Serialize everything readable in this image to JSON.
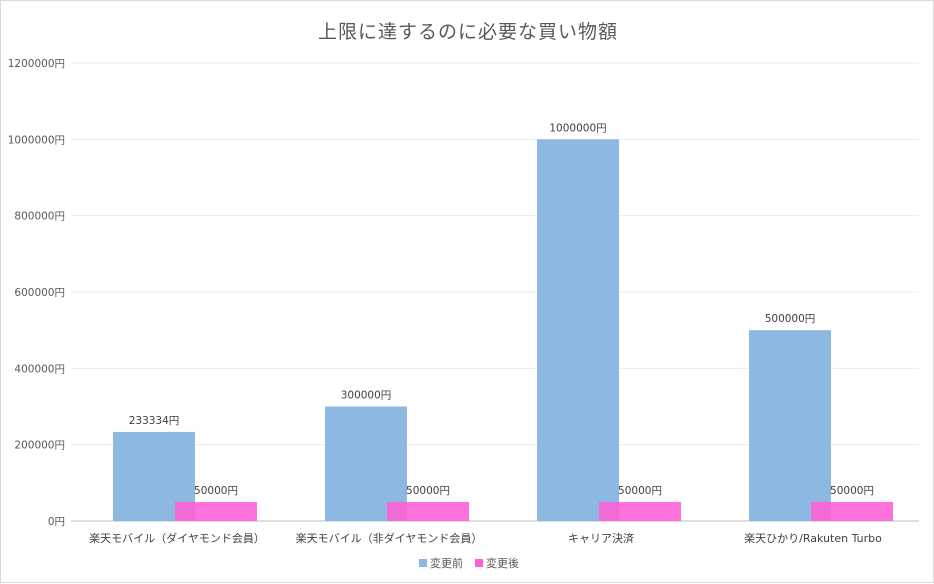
{
  "chart_data": {
    "type": "bar",
    "title": "上限に達するのに必要な買い物額",
    "categories": [
      "楽天モバイル（ダイヤモンド会員）",
      "楽天モバイル（非ダイヤモンド会員）",
      "キャリア決済",
      "楽天ひかり/Rakuten Turbo"
    ],
    "series": [
      {
        "name": "変更前",
        "color": "#8db8e2",
        "values": [
          233334,
          300000,
          1000000,
          500000
        ],
        "labels": [
          "233334円",
          "300000円",
          "1000000円",
          "500000円"
        ]
      },
      {
        "name": "変更後",
        "color": "#ff5fd6",
        "values": [
          50000,
          50000,
          50000,
          50000
        ],
        "labels": [
          "50000円",
          "50000円",
          "50000円",
          "50000円"
        ]
      }
    ],
    "ylim": [
      0,
      1200000
    ],
    "yticks": [
      0,
      200000,
      400000,
      600000,
      800000,
      1000000,
      1200000
    ],
    "ytick_labels": [
      "0円",
      "200000円",
      "400000円",
      "600000円",
      "800000円",
      "1000000円",
      "1200000円"
    ],
    "grid": true,
    "legend_position": "bottom"
  }
}
